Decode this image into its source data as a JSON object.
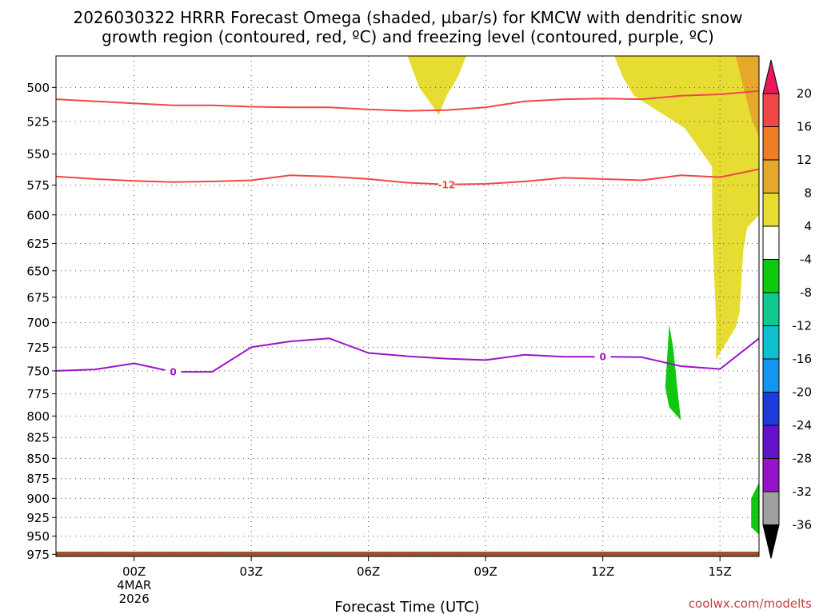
{
  "title": {
    "line1": "2026030322 HRRR Forecast Omega (shaded, µbar/s) for KMCW with dendritic snow",
    "line2": "growth region (contoured, red, ºC) and freezing level (contoured, purple, ºC)"
  },
  "credit": "coolwx.com/modelts",
  "chart_data": {
    "type": "heatmap",
    "title": "2026030322 HRRR Forecast Omega (shaded, µbar/s) for KMCW with dendritic snow growth region (contoured, red, ºC) and freezing level (contoured, purple, ºC)",
    "xlabel": "Forecast Time (UTC)",
    "ylabel": "",
    "x_range_hours": [
      -2,
      16
    ],
    "y_range_hPa": [
      478,
      978
    ],
    "y_ticks": [
      "500",
      "525",
      "550",
      "575",
      "600",
      "625",
      "650",
      "675",
      "700",
      "725",
      "750",
      "775",
      "800",
      "825",
      "850",
      "875",
      "900",
      "925",
      "950",
      "975"
    ],
    "x_ticks": [
      {
        "hour": 0,
        "label": "00Z",
        "sub": [
          "4MAR",
          "2026"
        ]
      },
      {
        "hour": 3,
        "label": "03Z"
      },
      {
        "hour": 6,
        "label": "06Z"
      },
      {
        "hour": 9,
        "label": "09Z"
      },
      {
        "hour": 12,
        "label": "12Z"
      },
      {
        "hour": 15,
        "label": "15Z"
      }
    ],
    "grid": true,
    "colorbar": {
      "units": "µbar/s",
      "labels": [
        "20",
        "16",
        "12",
        "8",
        "4",
        "-4",
        "-8",
        "-12",
        "-16",
        "-20",
        "-24",
        "-28",
        "-32",
        "-36"
      ],
      "colors": [
        "#e8185a",
        "#f04848",
        "#ee7d28",
        "#e6a82c",
        "#e6dc32",
        "#ffffff",
        "#10c810",
        "#10c890",
        "#10c0d0",
        "#1496f0",
        "#1e3cdc",
        "#6414c8",
        "#9614c8",
        "#a0a0a0",
        "#000000"
      ]
    },
    "series": [
      {
        "name": "-12",
        "color": "#f04848",
        "points": [
          [
            -2,
            568
          ],
          [
            -1,
            570
          ],
          [
            0,
            571.5
          ],
          [
            1,
            572.5
          ],
          [
            2,
            572
          ],
          [
            3,
            571
          ],
          [
            4,
            567
          ],
          [
            5,
            568
          ],
          [
            6,
            570
          ],
          [
            7,
            573
          ],
          [
            8,
            574.5
          ],
          [
            9,
            574
          ],
          [
            10,
            572
          ],
          [
            11,
            569
          ],
          [
            12,
            570
          ],
          [
            13,
            571
          ],
          [
            14,
            567
          ],
          [
            15,
            568.5
          ],
          [
            16,
            562
          ]
        ]
      },
      {
        "name": "",
        "color": "#f04848",
        "points": [
          [
            -2,
            508.5
          ],
          [
            -1,
            510
          ],
          [
            0,
            511.5
          ],
          [
            1,
            513
          ],
          [
            2,
            513
          ],
          [
            3,
            514
          ],
          [
            4,
            514.5
          ],
          [
            5,
            514.5
          ],
          [
            6,
            516
          ],
          [
            7,
            517
          ],
          [
            8,
            516.5
          ],
          [
            9,
            514.5
          ],
          [
            10,
            510
          ],
          [
            11,
            508.5
          ],
          [
            12,
            508
          ],
          [
            13,
            508.5
          ],
          [
            14,
            506
          ],
          [
            15,
            505
          ],
          [
            16,
            502.5
          ]
        ]
      },
      {
        "name": "0",
        "color": "#9a14c8",
        "points": [
          [
            -2,
            750
          ],
          [
            -1,
            748.5
          ],
          [
            0,
            742
          ],
          [
            1,
            751
          ],
          [
            2,
            751
          ],
          [
            3,
            725
          ],
          [
            4,
            719
          ],
          [
            5,
            716
          ],
          [
            6,
            731
          ],
          [
            7,
            734.5
          ],
          [
            8,
            737
          ],
          [
            9,
            738.5
          ],
          [
            10,
            733
          ],
          [
            11,
            735
          ],
          [
            12,
            735
          ],
          [
            13,
            735.5
          ],
          [
            14,
            745
          ],
          [
            15,
            748
          ],
          [
            16,
            716
          ]
        ]
      }
    ],
    "shaded_regions": [
      {
        "value_bin": "4 to 8",
        "color": "#e6dc32",
        "outline": [
          [
            7,
            478
          ],
          [
            8.5,
            478
          ],
          [
            8.3,
            492
          ],
          [
            8.0,
            506
          ],
          [
            7.8,
            520
          ],
          [
            7.3,
            500
          ],
          [
            7,
            478
          ]
        ]
      },
      {
        "value_bin": "4 to 8",
        "color": "#e6dc32",
        "outline": [
          [
            12.3,
            478
          ],
          [
            15.4,
            478
          ],
          [
            15.7,
            500
          ],
          [
            16,
            525
          ],
          [
            16,
            600
          ],
          [
            15.7,
            611
          ],
          [
            15.6,
            630
          ],
          [
            15.5,
            690
          ],
          [
            15.4,
            705
          ],
          [
            14.9,
            738
          ],
          [
            14.9,
            700
          ],
          [
            14.8,
            610
          ],
          [
            14.8,
            560
          ],
          [
            14.1,
            530
          ],
          [
            12.8,
            506
          ],
          [
            12.5,
            492
          ],
          [
            12.3,
            478
          ]
        ]
      },
      {
        "value_bin": "8 to 12",
        "color": "#e6a82c",
        "outline": [
          [
            15.4,
            478
          ],
          [
            16,
            478
          ],
          [
            16,
            537
          ],
          [
            15.8,
            522
          ],
          [
            15.6,
            500
          ],
          [
            15.4,
            478
          ]
        ]
      },
      {
        "value_bin": "-4 to -8",
        "color": "#10c810",
        "outline": [
          [
            13.7,
            702
          ],
          [
            13.8,
            725
          ],
          [
            13.9,
            765
          ],
          [
            14.0,
            805
          ],
          [
            13.7,
            790
          ],
          [
            13.6,
            768
          ],
          [
            13.7,
            702
          ]
        ]
      },
      {
        "value_bin": "-4 to -8",
        "color": "#10c810",
        "outline": [
          [
            15.8,
            900
          ],
          [
            16,
            880
          ],
          [
            16,
            948
          ],
          [
            15.8,
            938
          ],
          [
            15.8,
            900
          ]
        ]
      }
    ]
  }
}
